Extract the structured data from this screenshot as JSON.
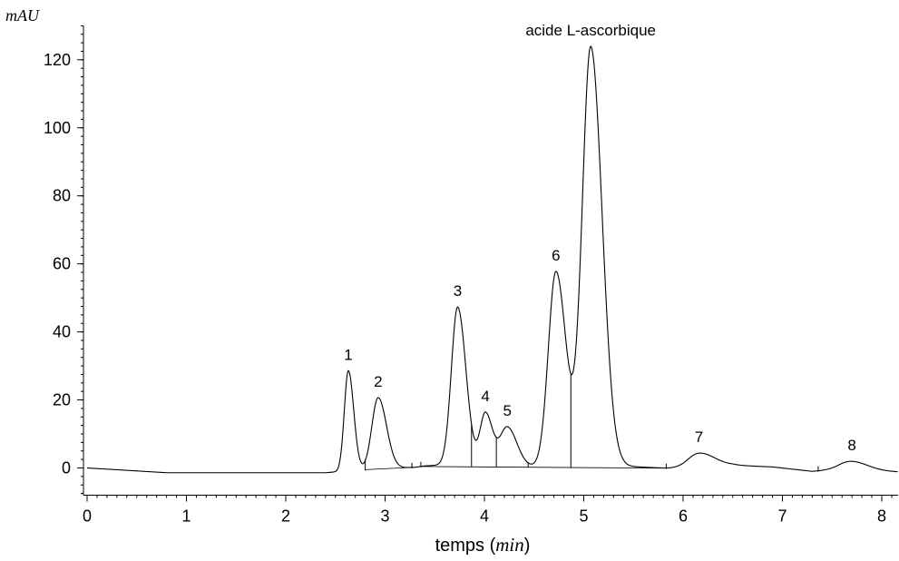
{
  "chart_data": {
    "type": "line",
    "ylabel": "mAU",
    "xlabel": {
      "text": "temps",
      "unit": "min"
    },
    "xlim": [
      -0.05,
      8.2
    ],
    "ylim": [
      -8,
      130
    ],
    "x_ticks": [
      0,
      1,
      2,
      3,
      4,
      5,
      6,
      7,
      8
    ],
    "y_ticks": [
      0,
      20,
      40,
      60,
      80,
      100,
      120
    ],
    "grid": false,
    "baseline": [
      [
        0,
        0
      ],
      [
        0.8,
        -1.4
      ],
      [
        2.4,
        -1.4
      ],
      [
        2.8,
        -0.5
      ],
      [
        3.3,
        0.2
      ],
      [
        3.4,
        0.6
      ],
      [
        3.6,
        0.9
      ],
      [
        4.4,
        0.4
      ],
      [
        4.9,
        0.2
      ],
      [
        5.4,
        0.5
      ],
      [
        6.0,
        -0.3
      ],
      [
        6.5,
        0.8
      ],
      [
        6.9,
        0.3
      ],
      [
        7.3,
        -1.0
      ],
      [
        7.6,
        -0.3
      ],
      [
        8.2,
        -1.2
      ]
    ],
    "peaks": [
      {
        "label": "1",
        "time": 2.63,
        "height": 29.5,
        "width": 0.045
      },
      {
        "label": "2",
        "time": 2.93,
        "height": 21.0,
        "width": 0.07
      },
      {
        "label": "3",
        "time": 3.73,
        "height": 46.5,
        "width": 0.07
      },
      {
        "label": "4",
        "time": 4.01,
        "height": 15.5,
        "width": 0.06
      },
      {
        "label": "5",
        "time": 4.23,
        "height": 11.5,
        "width": 0.08
      },
      {
        "label": "6",
        "time": 4.72,
        "height": 57.5,
        "width": 0.085
      },
      {
        "label": "acide L-ascorbique",
        "time": 5.07,
        "height": 123.5,
        "width": 0.095
      },
      {
        "label": "7",
        "time": 6.16,
        "height": 4.3,
        "width": 0.13
      },
      {
        "label": "8",
        "time": 7.7,
        "height": 2.4,
        "width": 0.13
      }
    ],
    "integration_marks": [
      2.8,
      3.27,
      3.36,
      3.87,
      4.12,
      4.44,
      4.87,
      5.83,
      7.36
    ],
    "integration_segments": [
      [
        2.8,
        3.27
      ],
      [
        3.36,
        5.83
      ]
    ]
  }
}
